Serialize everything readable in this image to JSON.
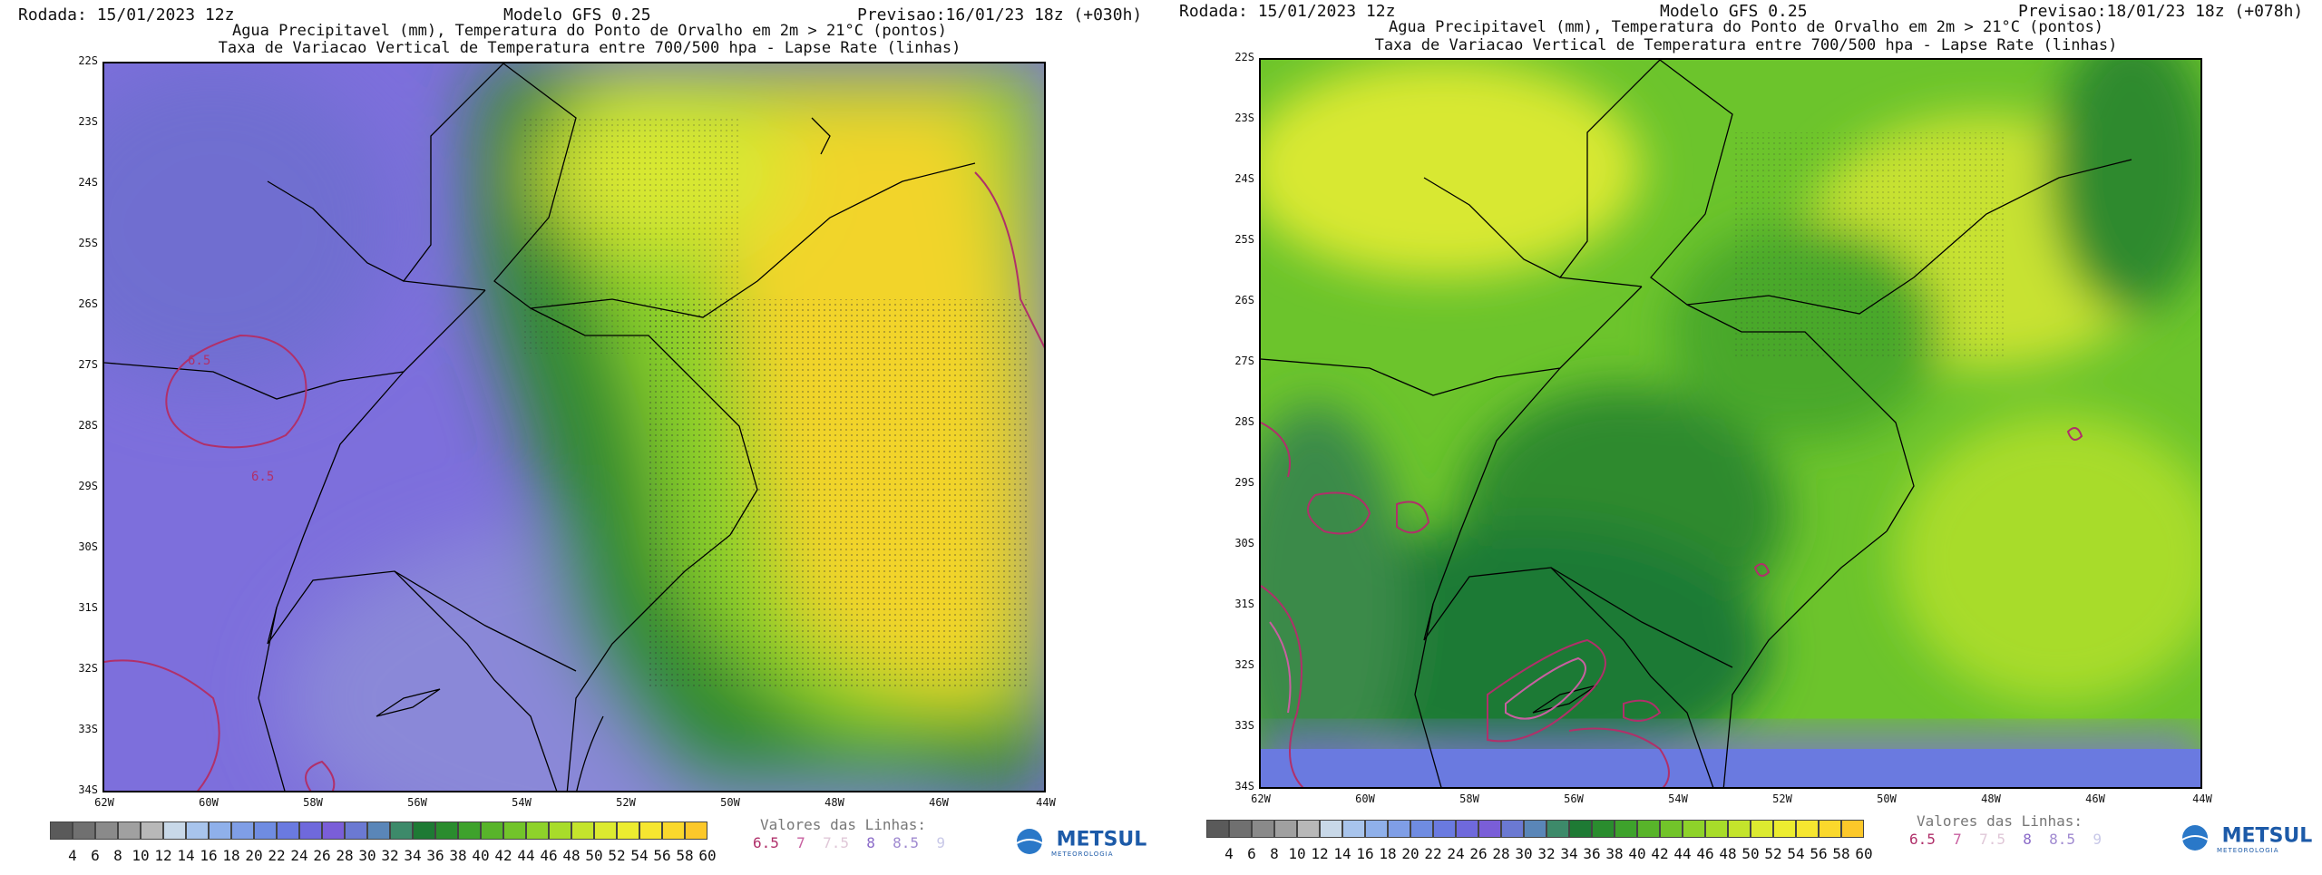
{
  "panels": [
    {
      "rodada": "Rodada: 15/01/2023 12z",
      "modelo": "Modelo GFS 0.25",
      "previsao": "Previsao:16/01/23 18z (+030h)",
      "line2": "Agua Precipitavel (mm), Temperatura do Ponto de Orvalho em 2m > 21°C (pontos)",
      "line3": "Taxa de Variacao Vertical de Temperatura entre 700/500 hpa - Lapse Rate (linhas)"
    },
    {
      "rodada": "Rodada: 15/01/2023 12z",
      "modelo": "Modelo GFS 0.25",
      "previsao": "Previsao:18/01/23 18z (+078h)",
      "line2": "Agua Precipitavel (mm), Temperatura do Ponto de Orvalho em 2m > 21°C (pontos)",
      "line3": "Taxa de Variacao Vertical de Temperatura entre 700/500 hpa - Lapse Rate (linhas)"
    }
  ],
  "lat_labels": [
    "22S",
    "23S",
    "24S",
    "25S",
    "26S",
    "27S",
    "28S",
    "29S",
    "30S",
    "31S",
    "32S",
    "33S",
    "34S"
  ],
  "lon_labels": [
    "62W",
    "60W",
    "58W",
    "56W",
    "54W",
    "52W",
    "50W",
    "48W",
    "46W",
    "44W"
  ],
  "contour_labels": [
    "6.5",
    "6.5"
  ],
  "scale": {
    "labels": [
      "4",
      "6",
      "8",
      "10",
      "12",
      "14",
      "16",
      "18",
      "20",
      "22",
      "24",
      "26",
      "28",
      "30",
      "32",
      "34",
      "36",
      "38",
      "40",
      "42",
      "44",
      "46",
      "48",
      "50",
      "52",
      "54",
      "56",
      "58",
      "60"
    ],
    "colors": [
      "#5a5a5a",
      "#707070",
      "#8a8a8a",
      "#a0a0a0",
      "#b8b8b8",
      "#c8d8e8",
      "#a8c4ec",
      "#8fb0ea",
      "#7f9ee6",
      "#6f8ce2",
      "#6a7ae0",
      "#6f69dc",
      "#7a5ed8",
      "#6b79d2",
      "#5a86b8",
      "#3d8a6a",
      "#1e7a34",
      "#2a8c2e",
      "#3ea22c",
      "#58b42a",
      "#72c42a",
      "#8ed22a",
      "#a8dc2a",
      "#c4e42c",
      "#dcea30",
      "#ecec30",
      "#f6e630",
      "#fad82c",
      "#fcc82a"
    ]
  },
  "lines_title": "Valores das Linhas:",
  "line_values": [
    {
      "text": "6.5",
      "color": "#b0306a"
    },
    {
      "text": "7",
      "color": "#c860a0"
    },
    {
      "text": "7.5",
      "color": "#e0c8d8"
    },
    {
      "text": "8",
      "color": "#8a6ac8"
    },
    {
      "text": "8.5",
      "color": "#a08ad0"
    },
    {
      "text": "9",
      "color": "#c8c8e8"
    }
  ],
  "logo": {
    "name": "METSUL",
    "sub": "METEOROLOGIA"
  }
}
